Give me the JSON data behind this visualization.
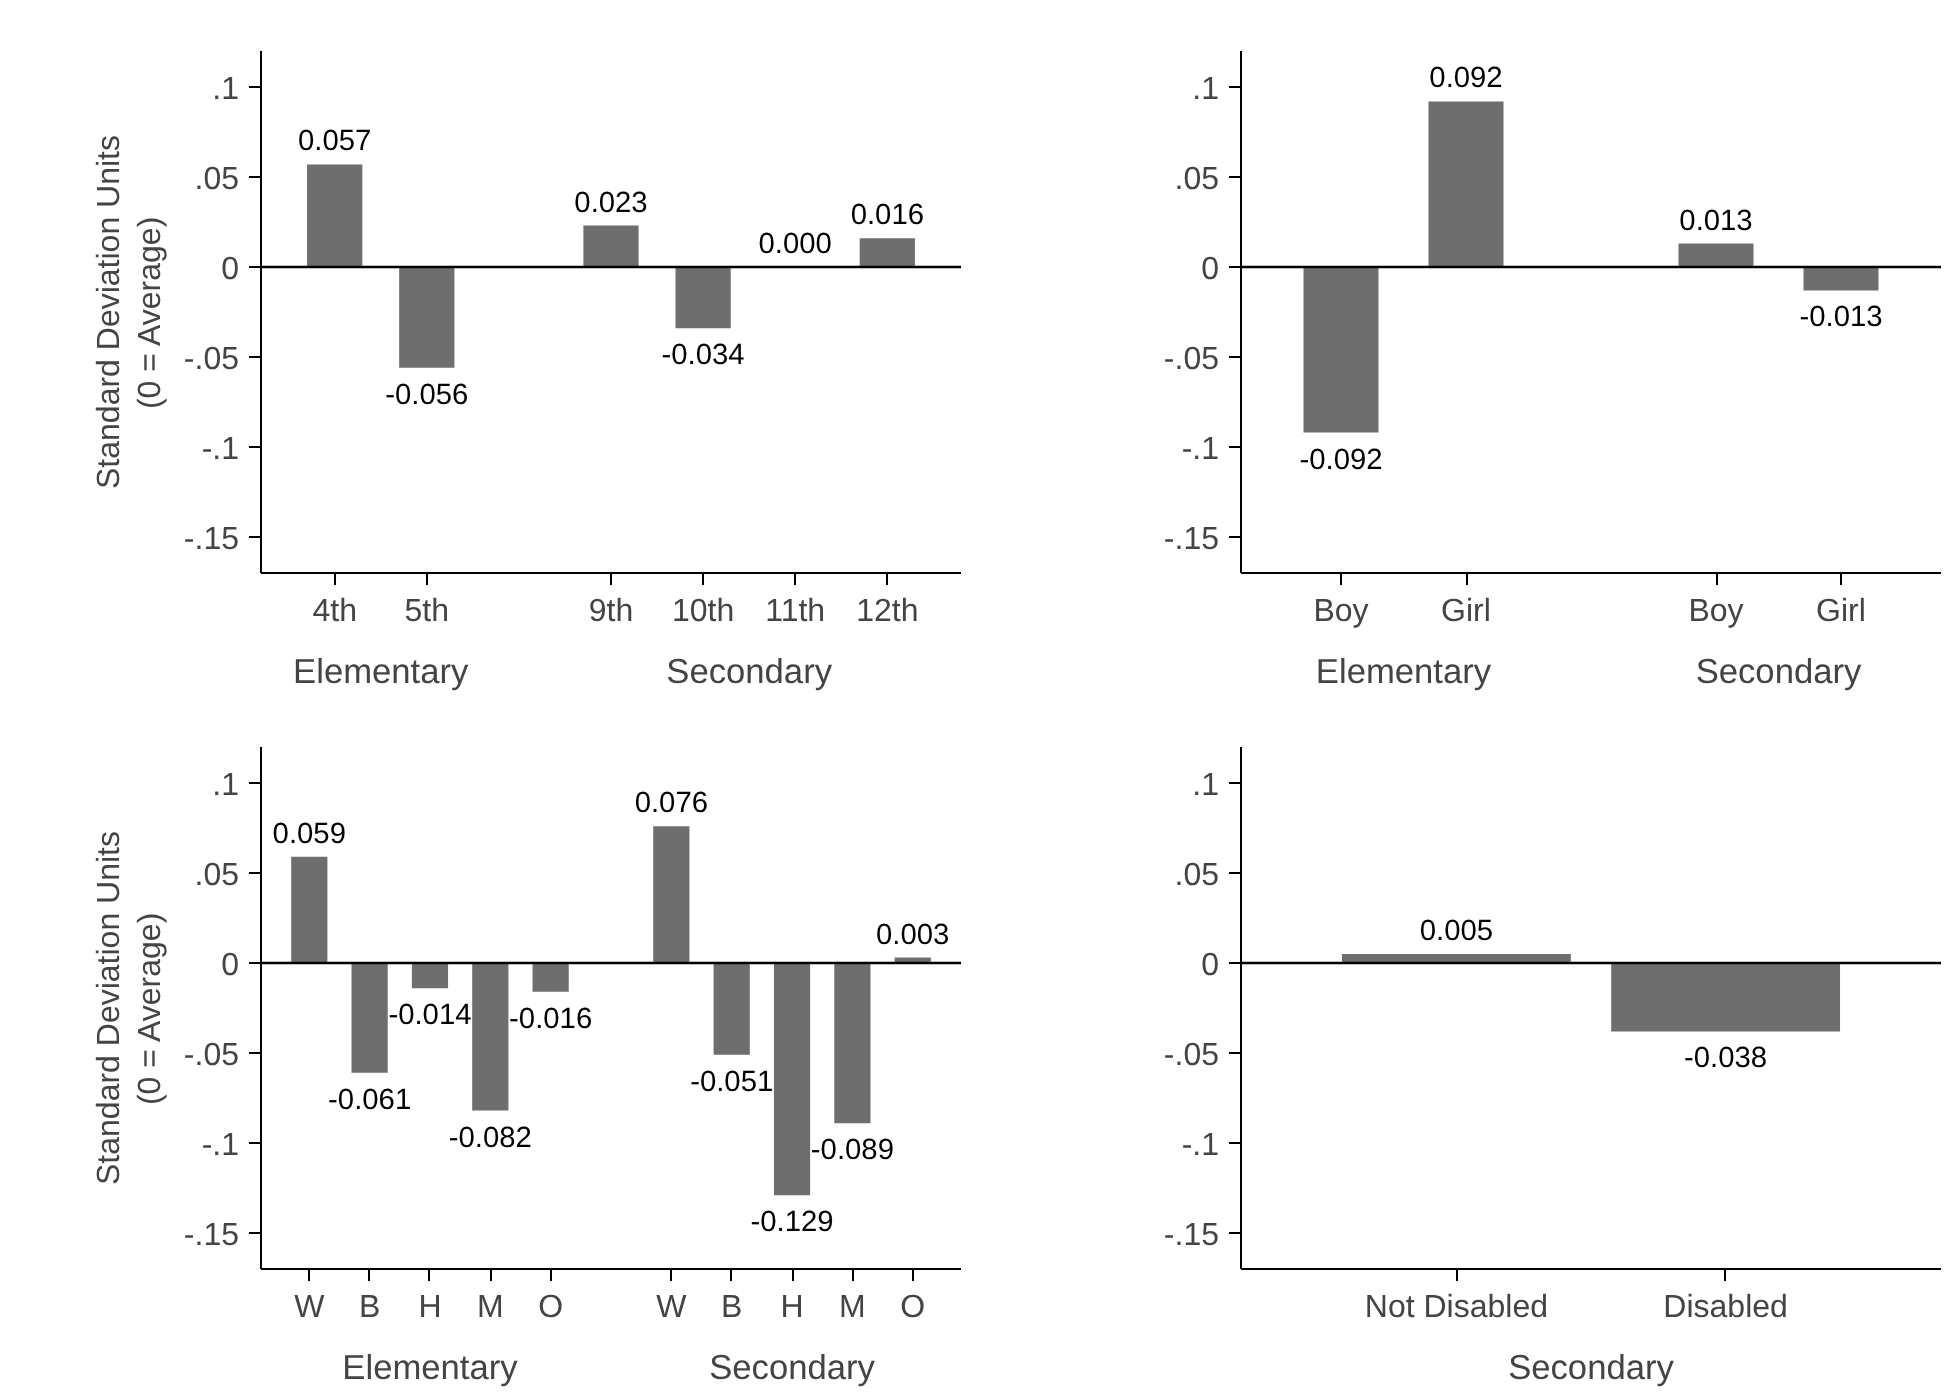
{
  "chart_data": [
    {
      "type": "bar",
      "ylabel": "Standard Deviation Units\n(0 = Average)",
      "categories": [
        "4th",
        "5th",
        null,
        "9th",
        "10th",
        "11th",
        "12th"
      ],
      "series": [
        {
          "color": "#6e6e6e",
          "values": [
            0.057,
            -0.056,
            null,
            0.023,
            -0.034,
            0.0,
            0.016
          ],
          "value_labels": [
            "0.057",
            "-0.056",
            null,
            "0.023",
            "-0.034",
            "0.000",
            "0.016"
          ]
        }
      ],
      "annotations": [
        "Elementary",
        "Secondary"
      ],
      "ylim": [
        -0.17,
        0.12
      ],
      "yticks": [
        {
          "value": 0.1,
          "label": ".1"
        },
        {
          "value": 0.05,
          "label": ".05"
        },
        0,
        {
          "value": -0.05,
          "label": "-.05"
        },
        {
          "value": -0.1,
          "label": "-.1"
        },
        {
          "value": -0.15,
          "label": "-.15"
        }
      ],
      "ref_lines": [
        {
          "axis": "y",
          "value": 0,
          "color": "#000000"
        }
      ]
    },
    {
      "type": "bar",
      "categories": [
        "Boy",
        "Girl",
        null,
        "Boy",
        "Girl"
      ],
      "series": [
        {
          "color": "#6e6e6e",
          "values": [
            -0.092,
            0.092,
            null,
            0.013,
            -0.013
          ],
          "value_labels": [
            "-0.092",
            "0.092",
            null,
            "0.013",
            "-0.013"
          ]
        }
      ],
      "annotations": [
        "Elementary",
        "Secondary"
      ],
      "ylim": [
        -0.17,
        0.12
      ],
      "yticks": [
        {
          "value": 0.1,
          "label": ".1"
        },
        {
          "value": 0.05,
          "label": ".05"
        },
        0,
        {
          "value": -0.05,
          "label": "-.05"
        },
        {
          "value": -0.1,
          "label": "-.1"
        },
        {
          "value": -0.15,
          "label": "-.15"
        }
      ],
      "ref_lines": [
        {
          "axis": "y",
          "value": 0,
          "color": "#000000"
        }
      ]
    },
    {
      "type": "bar",
      "ylabel": "Standard Deviation Units\n(0 = Average)",
      "categories": [
        "W",
        "B",
        "H",
        "M",
        "O",
        null,
        "W",
        "B",
        "H",
        "M",
        "O"
      ],
      "series": [
        {
          "color": "#6e6e6e",
          "values": [
            0.059,
            -0.061,
            -0.014,
            -0.082,
            -0.016,
            null,
            0.076,
            -0.051,
            -0.129,
            -0.089,
            0.003
          ],
          "value_labels": [
            "0.059",
            "-0.061",
            "-0.014",
            "-0.082",
            "-0.016",
            null,
            "0.076",
            "-0.051",
            "-0.129",
            "-0.089",
            "0.003"
          ]
        }
      ],
      "annotations": [
        "Elementary",
        "Secondary"
      ],
      "ylim": [
        -0.17,
        0.12
      ],
      "yticks": [
        {
          "value": 0.1,
          "label": ".1"
        },
        {
          "value": 0.05,
          "label": ".05"
        },
        0,
        {
          "value": -0.05,
          "label": "-.05"
        },
        {
          "value": -0.1,
          "label": "-.1"
        },
        {
          "value": -0.15,
          "label": "-.15"
        }
      ],
      "ref_lines": [
        {
          "axis": "y",
          "value": 0,
          "color": "#000000"
        }
      ]
    },
    {
      "type": "bar",
      "categories": [
        "Not Disabled",
        "Disabled"
      ],
      "series": [
        {
          "color": "#6e6e6e",
          "values": [
            0.005,
            -0.038
          ],
          "value_labels": [
            "0.005",
            "-0.038"
          ]
        }
      ],
      "annotations": [
        "Secondary"
      ],
      "ylim": [
        -0.17,
        0.12
      ],
      "yticks": [
        {
          "value": 0.1,
          "label": ".1"
        },
        {
          "value": 0.05,
          "label": ".05"
        },
        0,
        {
          "value": -0.05,
          "label": "-.05"
        },
        {
          "value": -0.1,
          "label": "-.1"
        },
        {
          "value": -0.15,
          "label": "-.15"
        }
      ],
      "ref_lines": [
        {
          "axis": "y",
          "value": 0,
          "color": "#000000"
        }
      ]
    }
  ]
}
